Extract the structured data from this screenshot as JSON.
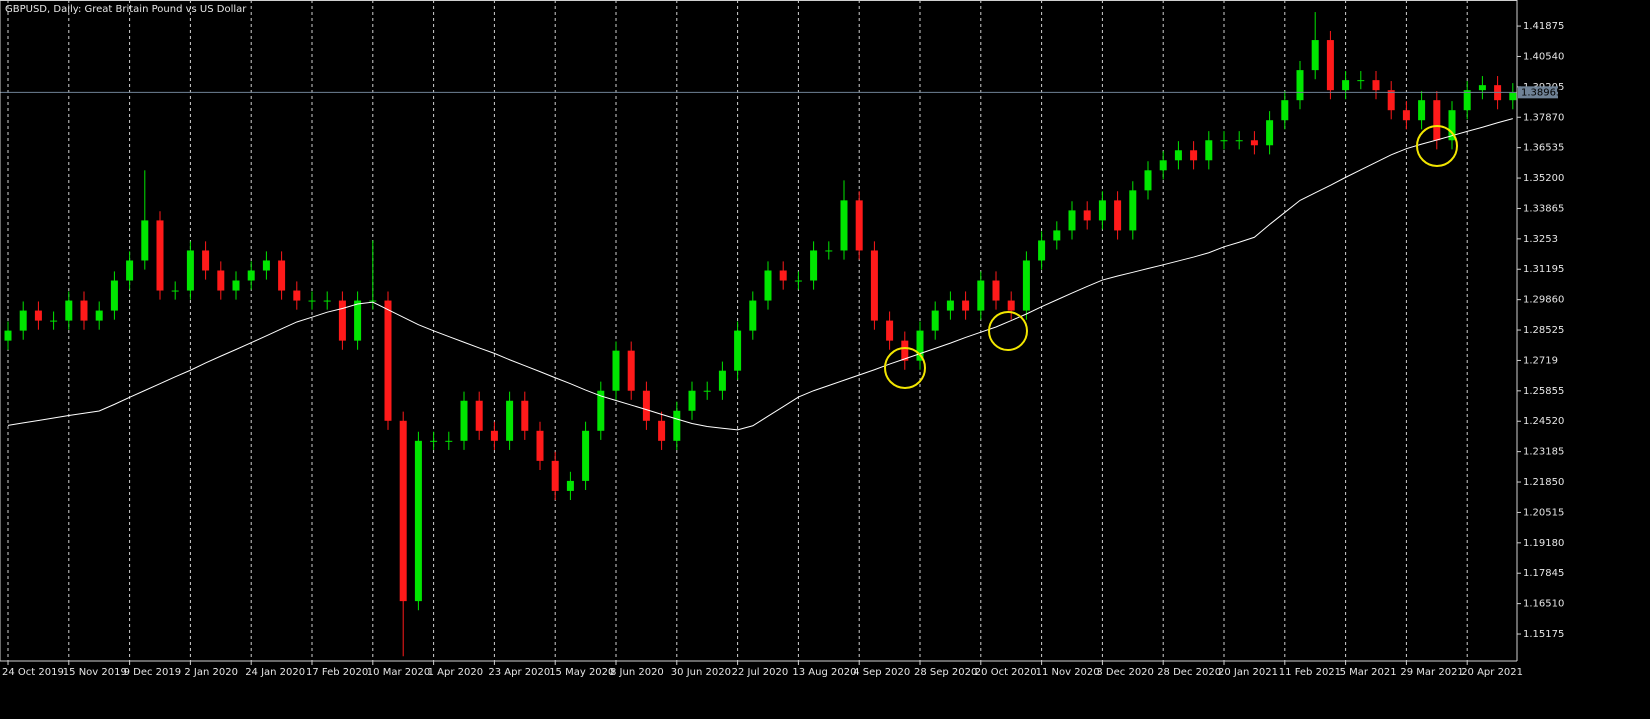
{
  "chart_data": {
    "type": "candlestick",
    "title": "GBPUSD, Daily:  Great Britain Pound vs US Dollar",
    "categories": [
      "24 Oct 2019",
      null,
      null,
      null,
      "15 Nov 2019",
      null,
      null,
      null,
      "9 Dec 2019",
      null,
      null,
      null,
      "2 Jan 2020",
      null,
      null,
      null,
      "24 Jan 2020",
      null,
      null,
      null,
      "17 Feb 2020",
      null,
      null,
      null,
      "10 Mar 2020",
      null,
      null,
      null,
      "1 Apr 2020",
      null,
      null,
      null,
      "23 Apr 2020",
      null,
      null,
      null,
      "15 May 2020",
      null,
      null,
      null,
      "8 Jun 2020",
      null,
      null,
      null,
      "30 Jun 2020",
      null,
      null,
      null,
      "22 Jul 2020",
      null,
      null,
      null,
      "13 Aug 2020",
      null,
      null,
      null,
      "4 Sep 2020",
      null,
      null,
      null,
      "28 Sep 2020",
      null,
      null,
      null,
      "20 Oct 2020",
      null,
      null,
      null,
      "11 Nov 2020",
      null,
      null,
      null,
      "3 Dec 2020",
      null,
      null,
      null,
      "28 Dec 2020",
      null,
      null,
      null,
      "20 Jan 2021",
      null,
      null,
      null,
      "11 Feb 2021",
      null,
      null,
      null,
      "5 Mar 2021",
      null,
      null,
      null,
      "29 Mar 2021",
      null,
      null,
      null,
      "20 Apr 2021",
      null,
      null,
      null
    ],
    "open": [
      1.2806,
      1.285,
      1.2938,
      1.2894,
      1.2894,
      1.2982,
      1.2894,
      1.2938,
      1.307,
      1.3158,
      1.3334,
      1.3026,
      1.3026,
      1.3202,
      1.3114,
      1.3026,
      1.307,
      1.3114,
      1.3158,
      1.3026,
      1.2982,
      1.2982,
      1.2982,
      1.2806,
      1.2982,
      1.2982,
      1.2454,
      1.1662,
      1.2366,
      1.2366,
      1.2366,
      1.2542,
      1.241,
      1.2366,
      1.2542,
      1.241,
      1.2278,
      1.2146,
      1.219,
      1.241,
      1.2586,
      1.2762,
      1.2586,
      1.2454,
      1.2366,
      1.2498,
      1.2586,
      1.2586,
      1.2674,
      1.285,
      1.2982,
      1.3114,
      1.307,
      1.307,
      1.3202,
      1.3202,
      1.3422,
      1.3202,
      1.2894,
      1.2806,
      1.2718,
      1.285,
      1.2938,
      1.2982,
      1.2938,
      1.307,
      1.2982,
      1.2938,
      1.3158,
      1.3246,
      1.329,
      1.3378,
      1.3334,
      1.3422,
      1.329,
      1.3466,
      1.3554,
      1.3598,
      1.3642,
      1.3598,
      1.3686,
      1.3686,
      1.3686,
      1.3664,
      1.3774,
      1.3862,
      1.3994,
      1.4126,
      1.3906,
      1.395,
      1.395,
      1.3906,
      1.3818,
      1.3774,
      1.3862,
      1.3686,
      1.3818,
      1.3906,
      1.3928,
      1.3862
    ],
    "high": [
      1.289,
      1.2978,
      1.2978,
      1.2934,
      1.3022,
      1.3022,
      1.2978,
      1.311,
      1.3198,
      1.3554,
      1.3374,
      1.3066,
      1.3242,
      1.3242,
      1.3154,
      1.311,
      1.3154,
      1.3198,
      1.3198,
      1.3066,
      1.3022,
      1.3022,
      1.3022,
      1.3022,
      1.3246,
      1.3022,
      1.2494,
      1.2406,
      1.2406,
      1.2406,
      1.2582,
      1.2582,
      1.245,
      1.2582,
      1.2582,
      1.245,
      1.2318,
      1.223,
      1.245,
      1.2626,
      1.2802,
      1.2802,
      1.2626,
      1.2494,
      1.2538,
      1.2626,
      1.2626,
      1.2714,
      1.289,
      1.3022,
      1.3154,
      1.3154,
      1.311,
      1.3242,
      1.3242,
      1.351,
      1.3462,
      1.3242,
      1.2934,
      1.2846,
      1.289,
      1.2978,
      1.3022,
      1.3022,
      1.311,
      1.311,
      1.3022,
      1.3198,
      1.3286,
      1.333,
      1.3418,
      1.3418,
      1.3462,
      1.3462,
      1.3506,
      1.3594,
      1.3638,
      1.3682,
      1.3682,
      1.3726,
      1.3726,
      1.3726,
      1.3726,
      1.3814,
      1.3902,
      1.4034,
      1.4249,
      1.4166,
      1.399,
      1.399,
      1.399,
      1.3946,
      1.3858,
      1.3902,
      1.3902,
      1.3858,
      1.3946,
      1.3968,
      1.3968,
      1.3937
    ],
    "low": [
      1.2766,
      1.281,
      1.2854,
      1.2854,
      1.2854,
      1.2854,
      1.2854,
      1.2898,
      1.303,
      1.3118,
      1.2986,
      1.2986,
      1.2986,
      1.3074,
      1.2986,
      1.2986,
      1.303,
      1.3074,
      1.2986,
      1.2942,
      1.2942,
      1.2942,
      1.2766,
      1.2766,
      1.2942,
      1.2414,
      1.142,
      1.1622,
      1.2326,
      1.2326,
      1.2326,
      1.237,
      1.2326,
      1.2326,
      1.237,
      1.2238,
      1.2106,
      1.2106,
      1.215,
      1.237,
      1.2546,
      1.2546,
      1.2414,
      1.2326,
      1.2326,
      1.2458,
      1.2546,
      1.2546,
      1.2634,
      1.281,
      1.2942,
      1.303,
      1.303,
      1.303,
      1.3162,
      1.3162,
      1.3162,
      1.2854,
      1.2766,
      1.2678,
      1.2678,
      1.281,
      1.2898,
      1.2898,
      1.2898,
      1.2942,
      1.2898,
      1.2898,
      1.3118,
      1.3206,
      1.325,
      1.3294,
      1.3294,
      1.325,
      1.325,
      1.3426,
      1.3514,
      1.3558,
      1.3558,
      1.3558,
      1.3646,
      1.3646,
      1.3624,
      1.3624,
      1.3734,
      1.3822,
      1.3954,
      1.3866,
      1.3866,
      1.391,
      1.3866,
      1.3778,
      1.3734,
      1.3734,
      1.3646,
      1.3646,
      1.3778,
      1.3866,
      1.3822,
      1.3822
    ],
    "close": [
      1.285,
      1.2938,
      1.2894,
      1.2894,
      1.2982,
      1.2894,
      1.2938,
      1.307,
      1.3158,
      1.3334,
      1.3026,
      1.3026,
      1.3202,
      1.3114,
      1.3026,
      1.307,
      1.3114,
      1.3158,
      1.3026,
      1.2982,
      1.2982,
      1.2982,
      1.2806,
      1.2982,
      1.2982,
      1.2454,
      1.1662,
      1.2366,
      1.2366,
      1.2366,
      1.2542,
      1.241,
      1.2366,
      1.2542,
      1.241,
      1.2278,
      1.2146,
      1.219,
      1.241,
      1.2586,
      1.2762,
      1.2586,
      1.2454,
      1.2366,
      1.2498,
      1.2586,
      1.2586,
      1.2674,
      1.285,
      1.2982,
      1.3114,
      1.307,
      1.307,
      1.3202,
      1.3202,
      1.3422,
      1.3202,
      1.2894,
      1.2806,
      1.2718,
      1.285,
      1.2938,
      1.2982,
      1.2938,
      1.307,
      1.2982,
      1.2938,
      1.3158,
      1.3246,
      1.329,
      1.3378,
      1.3334,
      1.3422,
      1.329,
      1.3466,
      1.3554,
      1.3598,
      1.3642,
      1.3598,
      1.3686,
      1.3686,
      1.3686,
      1.3664,
      1.3774,
      1.3862,
      1.3994,
      1.4126,
      1.3906,
      1.395,
      1.395,
      1.3906,
      1.3818,
      1.3774,
      1.3862,
      1.3686,
      1.3818,
      1.3906,
      1.3928,
      1.3862,
      1.3897
    ],
    "up_color": "#00e600",
    "down_color": "#ff1a1a",
    "moving_average": {
      "color": "#ffffff",
      "values": [
        1.2434,
        1.2445,
        1.2455,
        1.2466,
        1.2477,
        1.2487,
        1.2497,
        1.2526,
        1.2557,
        1.2587,
        1.2617,
        1.2647,
        1.2676,
        1.2708,
        1.2738,
        1.2767,
        1.2797,
        1.2827,
        1.2858,
        1.2888,
        1.2909,
        1.2931,
        1.2947,
        1.2967,
        1.2975,
        1.2942,
        1.2909,
        1.2876,
        1.2849,
        1.2824,
        1.2799,
        1.2774,
        1.275,
        1.2722,
        1.2696,
        1.267,
        1.2643,
        1.2617,
        1.2589,
        1.2563,
        1.2543,
        1.2523,
        1.2503,
        1.2482,
        1.2462,
        1.2442,
        1.2429,
        1.2421,
        1.2414,
        1.2432,
        1.2474,
        1.2516,
        1.2558,
        1.2586,
        1.2609,
        1.2632,
        1.2655,
        1.2678,
        1.2703,
        1.2726,
        1.2749,
        1.2772,
        1.2795,
        1.282,
        1.2843,
        1.2866,
        1.2894,
        1.2923,
        1.2955,
        1.2985,
        1.3015,
        1.3044,
        1.3072,
        1.309,
        1.3106,
        1.3123,
        1.3139,
        1.3156,
        1.3173,
        1.3192,
        1.3218,
        1.3238,
        1.326,
        1.3316,
        1.3369,
        1.3422,
        1.3455,
        1.3488,
        1.3523,
        1.3556,
        1.3589,
        1.3622,
        1.3649,
        1.3669,
        1.3687,
        1.3706,
        1.3725,
        1.3743,
        1.3763,
        1.3781
      ]
    },
    "current_price": 1.38965,
    "current_price_color": "#6f8296",
    "ylim": [
      1.1399,
      1.4302
    ],
    "yticks": [
      1.41875,
      {
        "value": 1.4054,
        "label": "1.40540"
      },
      1.39205,
      {
        "value": 1.3787,
        "label": "1.37870"
      },
      1.36535,
      {
        "value": 1.352,
        "label": "1.35200"
      },
      1.33865,
      1.3253,
      1.31195,
      {
        "value": 1.2986,
        "label": "1.29860"
      },
      1.28525,
      1.2719,
      1.25855,
      {
        "value": 1.2452,
        "label": "1.24520"
      },
      1.23185,
      {
        "value": 1.2185,
        "label": "1.21850"
      },
      1.20515,
      {
        "value": 1.1918,
        "label": "1.19180"
      },
      1.17845,
      {
        "value": 1.1651,
        "label": "1.16510"
      },
      1.15175
    ],
    "xgrid": true
  }
}
